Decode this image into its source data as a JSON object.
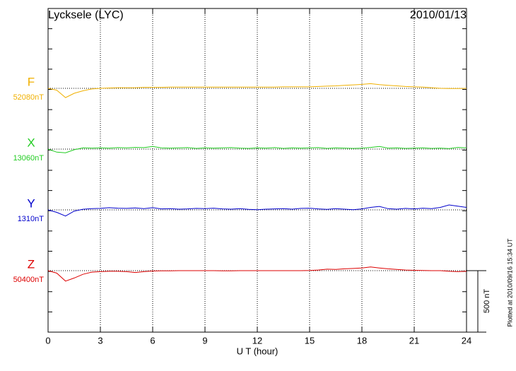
{
  "chart_data": {
    "type": "line",
    "title": "Lycksele (LYC)",
    "date": "2010/01/13",
    "x_label": "U T (hour)",
    "footnote": "Plotted at 2010/09/16 15:34 UT",
    "xlim": [
      0,
      24
    ],
    "xticks": [
      0,
      3,
      6,
      9,
      12,
      15,
      18,
      21,
      24
    ],
    "grid": true,
    "scale_bar": {
      "value": 500,
      "label": "500 nT"
    },
    "x": [
      0,
      0.5,
      1,
      1.5,
      2,
      2.5,
      3,
      3.5,
      4,
      4.5,
      5,
      5.5,
      6,
      6.5,
      7,
      7.5,
      8,
      8.5,
      9,
      9.5,
      10,
      10.5,
      11,
      11.5,
      12,
      12.5,
      13,
      13.5,
      14,
      14.5,
      15,
      15.5,
      16,
      16.5,
      17,
      17.5,
      18,
      18.5,
      19,
      19.5,
      20,
      20.5,
      21,
      21.5,
      22,
      22.5,
      23,
      23.5,
      24
    ],
    "series": [
      {
        "name": "F",
        "baseline_label": "52080nT",
        "color": "#f0b000",
        "values": [
          0,
          -15,
          -75,
          -40,
          -20,
          -5,
          0,
          3,
          5,
          5,
          5,
          8,
          8,
          8,
          10,
          10,
          10,
          10,
          10,
          10,
          10,
          10,
          10,
          10,
          10,
          10,
          10,
          12,
          12,
          12,
          12,
          15,
          18,
          20,
          25,
          28,
          32,
          38,
          30,
          25,
          20,
          15,
          12,
          10,
          5,
          0,
          -2,
          -2,
          0
        ]
      },
      {
        "name": "X",
        "baseline_label": "13060nT",
        "color": "#22cc22",
        "values": [
          0,
          -25,
          -30,
          -5,
          10,
          8,
          10,
          8,
          12,
          10,
          14,
          12,
          22,
          10,
          8,
          10,
          12,
          6,
          10,
          8,
          10,
          12,
          8,
          6,
          10,
          8,
          12,
          6,
          10,
          8,
          10,
          12,
          6,
          10,
          8,
          6,
          8,
          14,
          22,
          8,
          10,
          6,
          8,
          10,
          6,
          8,
          4,
          14,
          10
        ]
      },
      {
        "name": "Y",
        "baseline_label": "1310nT",
        "color": "#0000cc",
        "values": [
          0,
          -20,
          -50,
          -10,
          5,
          10,
          12,
          18,
          14,
          12,
          16,
          10,
          18,
          8,
          10,
          6,
          8,
          12,
          10,
          14,
          8,
          6,
          10,
          4,
          2,
          6,
          8,
          10,
          6,
          12,
          14,
          8,
          4,
          10,
          6,
          2,
          8,
          20,
          28,
          10,
          6,
          12,
          8,
          14,
          10,
          20,
          40,
          30,
          20
        ]
      },
      {
        "name": "Z",
        "baseline_label": "50400nT",
        "color": "#dd0000",
        "values": [
          0,
          -20,
          -85,
          -60,
          -30,
          -12,
          -8,
          -5,
          -5,
          -8,
          -15,
          -8,
          -3,
          -2,
          -2,
          0,
          0,
          0,
          0,
          0,
          -2,
          -2,
          0,
          0,
          0,
          0,
          0,
          0,
          0,
          0,
          2,
          5,
          12,
          10,
          15,
          18,
          22,
          30,
          22,
          15,
          10,
          5,
          3,
          2,
          0,
          0,
          -5,
          -8,
          -5
        ]
      }
    ]
  }
}
